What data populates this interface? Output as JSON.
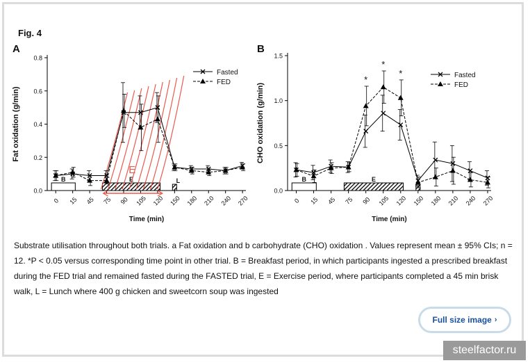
{
  "figure": {
    "title": "Fig. 4"
  },
  "chart_data": [
    {
      "type": "line",
      "panel": "A",
      "ylabel": "Fat oxidation (g/min)",
      "xlabel": "Time (min)",
      "x": [
        0,
        15,
        45,
        75,
        90,
        105,
        120,
        150,
        180,
        210,
        240,
        270
      ],
      "ylim": [
        0,
        0.8
      ],
      "yticks": [
        "0.0",
        "0.2",
        "0.4",
        "0.6",
        "0.8"
      ],
      "series": [
        {
          "name": "Fasted",
          "marker": "x",
          "dash": "solid",
          "values": [
            0.09,
            0.1,
            0.09,
            0.09,
            0.47,
            0.47,
            0.5,
            0.14,
            0.13,
            0.13,
            0.12,
            0.15
          ],
          "err": [
            0.03,
            0.03,
            0.03,
            0.03,
            0.18,
            0.1,
            0.09,
            0.02,
            0.02,
            0.02,
            0.02,
            0.02
          ]
        },
        {
          "name": "FED",
          "marker": "triangle",
          "dash": "dashed",
          "values": [
            0.09,
            0.11,
            0.06,
            0.06,
            0.48,
            0.38,
            0.43,
            0.14,
            0.12,
            0.11,
            0.12,
            0.14
          ],
          "err": [
            0.03,
            0.03,
            0.03,
            0.02,
            0.1,
            0.14,
            0.14,
            0.02,
            0.02,
            0.02,
            0.02,
            0.02
          ]
        }
      ],
      "periods": [
        {
          "label": "B",
          "start": 0,
          "end": 15,
          "pattern": "open"
        },
        {
          "label": "E",
          "start": 75,
          "end": 120,
          "pattern": "hatched"
        },
        {
          "label": "L",
          "start": 150,
          "end": 150,
          "pattern": "hatched-small"
        }
      ],
      "annotation": "E",
      "legend": "top-right",
      "significance": []
    },
    {
      "type": "line",
      "panel": "B",
      "ylabel": "CHO oxidation (g/min)",
      "xlabel": "Time (min)",
      "x": [
        0,
        15,
        45,
        75,
        90,
        105,
        120,
        150,
        180,
        210,
        240,
        270
      ],
      "ylim": [
        0,
        1.5
      ],
      "yticks": [
        "0.0",
        "0.5",
        "1.0",
        "1.5"
      ],
      "series": [
        {
          "name": "Fasted",
          "marker": "x",
          "dash": "solid",
          "values": [
            0.23,
            0.2,
            0.27,
            0.26,
            0.66,
            0.86,
            0.73,
            0.11,
            0.34,
            0.3,
            0.22,
            0.14
          ],
          "err": [
            0.08,
            0.08,
            0.07,
            0.06,
            0.18,
            0.2,
            0.17,
            0.06,
            0.2,
            0.2,
            0.1,
            0.08
          ]
        },
        {
          "name": "FED",
          "marker": "triangle",
          "dash": "dashed",
          "values": [
            0.23,
            0.16,
            0.25,
            0.26,
            0.94,
            1.15,
            1.03,
            0.09,
            0.15,
            0.22,
            0.12,
            0.09
          ],
          "err": [
            0.07,
            0.07,
            0.06,
            0.05,
            0.22,
            0.18,
            0.2,
            0.06,
            0.1,
            0.15,
            0.08,
            0.06
          ]
        }
      ],
      "periods": [
        {
          "label": "B",
          "start": 0,
          "end": 15,
          "pattern": "open"
        },
        {
          "label": "E",
          "start": 75,
          "end": 120,
          "pattern": "hatched"
        },
        {
          "label": "",
          "start": 150,
          "end": 150,
          "pattern": "hatched-small"
        }
      ],
      "legend": "top-right",
      "significance": [
        {
          "x": 90,
          "label": "*"
        },
        {
          "x": 105,
          "label": "*"
        },
        {
          "x": 120,
          "label": "*"
        }
      ]
    }
  ],
  "caption": {
    "text": "Substrate utilisation throughout both trials. a Fat oxidation and b carbohydrate (CHO) oxidation . Values represent mean ± 95% CIs; n = 12. *P < 0.05 versus corresponding time point in other trial. B = Breakfast period, in which participants ingested a prescribed breakfast during the FED trial and remained fasted during the FASTED trial, E = Exercise period, where participants completed a 45 min brisk walk, L = Lunch where 400 g chicken and sweetcorn soup was ingested"
  },
  "actions": {
    "full_size_label": "Full size image",
    "full_size_icon": "chevron-right-icon"
  },
  "watermark": {
    "text": "steelfactor.ru"
  },
  "colors": {
    "button_text": "#1a4f9c",
    "button_border": "#c8dbe8",
    "annotation": "#e8483a",
    "watermark_bg": "#9a9a9a"
  }
}
